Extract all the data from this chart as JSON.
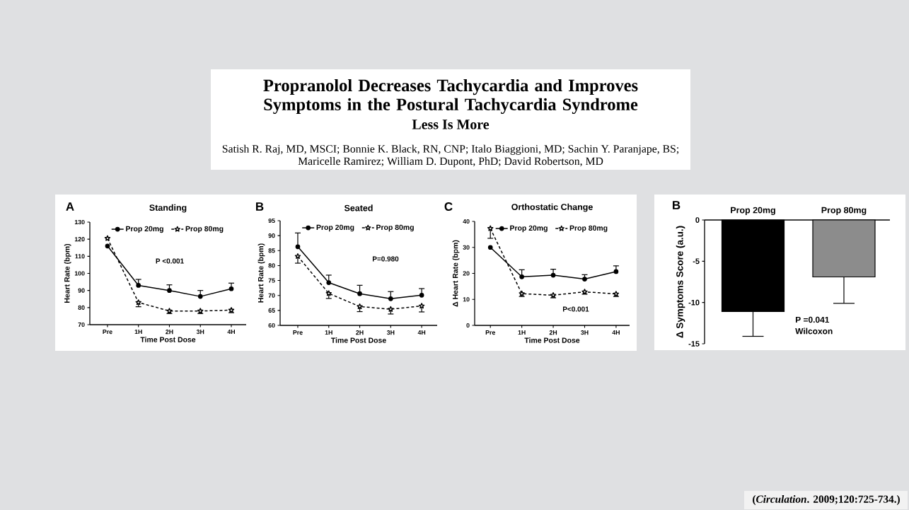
{
  "chart_data": [
    {
      "type": "other",
      "title": "Propranolol Decreases Tachycardia and Improves Symptoms in the Postural Tachycardia Syndrome",
      "subtitle": "Less Is More",
      "annotations": [
        "Satish R. Raj, MD, MSCI; Bonnie K. Black, RN, CNP; Italo Biaggioni, MD; Sachin Y. Paranjape, BS; Maricelle Ramirez; William D. Dupont, PhD; David Robertson, MD",
        "(*Circulation*. 2009;120:725-734.)"
      ]
    },
    {
      "type": "line",
      "title": "Standing",
      "xlabel": "Time Post Dose",
      "ylabel": "Heart Rate (bpm)",
      "annotations": [
        "A",
        "P <0.001"
      ],
      "categories": [
        "Pre",
        "1H",
        "2H",
        "3H",
        "4H"
      ],
      "ylim": [
        70,
        130
      ],
      "yticks": [
        70,
        80,
        90,
        100,
        110,
        120,
        130
      ],
      "legend": "top",
      "series": [
        {
          "name": "Prop 20mg",
          "color": "#000000",
          "marker": "circle",
          "line_style": "solid",
          "values": [
            116,
            93,
            90,
            86.5,
            91
          ],
          "errors": [
            null,
            [
              93,
              96.5
            ],
            [
              90,
              93.3
            ],
            [
              86.5,
              90
            ],
            [
              91,
              94.3
            ]
          ]
        },
        {
          "name": "Prop 80mg",
          "color": "#000000",
          "marker": "star",
          "line_style": "dashed",
          "values": [
            120.5,
            83,
            78,
            78,
            78.5
          ],
          "errors": [
            null,
            [
              80.5,
              83
            ],
            [
              76.5,
              78
            ],
            [
              76.5,
              78
            ],
            [
              77,
              78.5
            ]
          ]
        }
      ]
    },
    {
      "type": "line",
      "title": "Seated",
      "xlabel": "Time Post Dose",
      "ylabel": "Heart Rate (bpm)",
      "annotations": [
        "B",
        "P=0.980"
      ],
      "categories": [
        "Pre",
        "1H",
        "2H",
        "3H",
        "4H"
      ],
      "ylim": [
        60,
        95
      ],
      "yticks": [
        60,
        65,
        70,
        75,
        80,
        85,
        90,
        95
      ],
      "legend": "top",
      "series": [
        {
          "name": "Prop 20mg",
          "color": "#000000",
          "marker": "circle",
          "line_style": "solid",
          "values": [
            86.3,
            74.3,
            70.6,
            68.9,
            70.1
          ],
          "errors": [
            [
              86.3,
              90.9
            ],
            [
              74.3,
              76.8
            ],
            [
              70.6,
              73.4
            ],
            [
              68.9,
              71.3
            ],
            [
              70.1,
              72.3
            ]
          ]
        },
        {
          "name": "Prop 80mg",
          "color": "#000000",
          "marker": "star",
          "line_style": "dashed",
          "values": [
            83.1,
            70.7,
            66.3,
            65.4,
            66.5
          ],
          "errors": [
            [
              80.8,
              83.1
            ],
            [
              69,
              70.7
            ],
            [
              64.6,
              66.3
            ],
            [
              63.8,
              65.4
            ],
            [
              64.5,
              66.5
            ]
          ]
        }
      ]
    },
    {
      "type": "line",
      "title": "Orthostatic Change",
      "xlabel": "Time Post Dose",
      "ylabel": "Δ Heart Rate (bpm)",
      "annotations": [
        "C",
        "P<0.001"
      ],
      "categories": [
        "Pre",
        "1H",
        "2H",
        "3H",
        "4H"
      ],
      "ylim": [
        0,
        40
      ],
      "yticks": [
        0,
        10,
        20,
        30,
        40
      ],
      "legend": "top",
      "series": [
        {
          "name": "Prop 20mg",
          "color": "#000000",
          "marker": "circle",
          "line_style": "solid",
          "values": [
            30,
            18.7,
            19.3,
            17.8,
            20.7
          ],
          "errors": [
            null,
            [
              18.7,
              21.4
            ],
            [
              19.3,
              21.6
            ],
            [
              17.8,
              19.5
            ],
            [
              20.7,
              22.9
            ]
          ]
        },
        {
          "name": "Prop 80mg",
          "color": "#000000",
          "marker": "star",
          "line_style": "dashed",
          "values": [
            37.3,
            12.2,
            11.6,
            12.9,
            12.1
          ],
          "errors": [
            [
              33.5,
              37.3
            ],
            [
              11.1,
              12.2
            ],
            [
              10.6,
              11.6
            ],
            [
              12,
              12.9
            ],
            [
              11.1,
              12.1
            ]
          ]
        }
      ]
    },
    {
      "type": "bar",
      "ylabel": "Δ Symptoms Score (a.u.)",
      "annotations": [
        "B",
        "P =0.041",
        "Wilcoxon"
      ],
      "categories": [
        "Prop 20mg",
        "Prop 80mg"
      ],
      "values": [
        -11.1,
        -6.9
      ],
      "colors": [
        "#000000",
        "#8c8c8c"
      ],
      "errors": [
        [
          -14.1,
          -11.1
        ],
        [
          -10.1,
          -6.9
        ]
      ],
      "ylim": [
        -15,
        0
      ],
      "yticks": [
        -15,
        -10,
        -5,
        0
      ]
    }
  ]
}
